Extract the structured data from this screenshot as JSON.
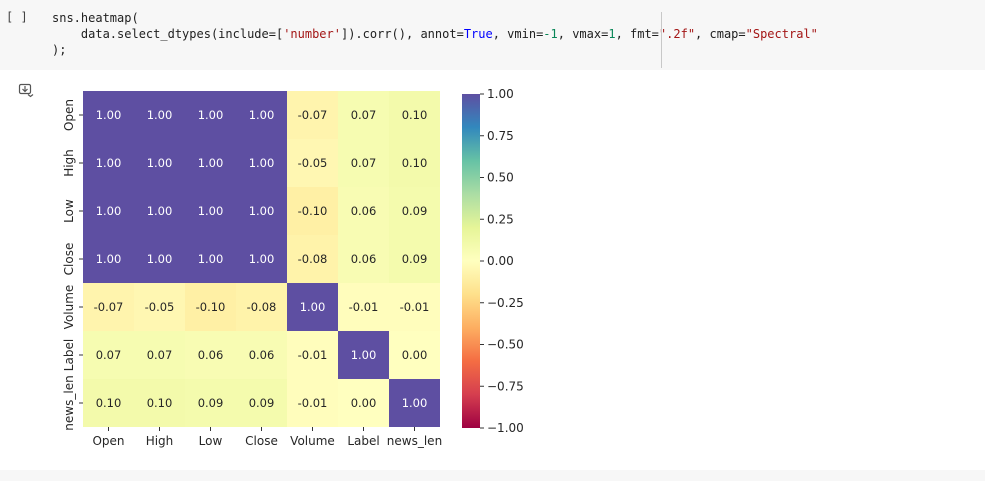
{
  "cell": {
    "bracket": "[ ]",
    "code": {
      "line1": "sns.heatmap(",
      "line2_parts": [
        {
          "t": "    data.select_dtypes(include=[",
          "c": ""
        },
        {
          "t": "'number'",
          "c": "tok-str"
        },
        {
          "t": "]).corr(), annot=",
          "c": ""
        },
        {
          "t": "True",
          "c": "tok-kw"
        },
        {
          "t": ", vmin=",
          "c": ""
        },
        {
          "t": "-1",
          "c": "tok-num"
        },
        {
          "t": ", vmax=",
          "c": ""
        },
        {
          "t": "1",
          "c": "tok-num"
        },
        {
          "t": ", fmt=",
          "c": ""
        },
        {
          "t": "\".2f\"",
          "c": "tok-str"
        },
        {
          "t": ", cmap=",
          "c": ""
        },
        {
          "t": "\"Spectral\"",
          "c": "tok-str"
        }
      ],
      "line2_end": "",
      "line3": ");"
    }
  },
  "output_toggle_icon": "output-toggle-icon",
  "chart_data": {
    "type": "heatmap",
    "title": "",
    "xlabel": "",
    "ylabel": "",
    "colormap": "Spectral",
    "vmin": -1,
    "vmax": 1,
    "fmt": ".2f",
    "rows": [
      "Open",
      "High",
      "Low",
      "Close",
      "Volume",
      "Label",
      "news_len"
    ],
    "columns": [
      "Open",
      "High",
      "Low",
      "Close",
      "Volume",
      "Label",
      "news_len"
    ],
    "values": [
      [
        1.0,
        1.0,
        1.0,
        1.0,
        -0.07,
        0.07,
        0.1
      ],
      [
        1.0,
        1.0,
        1.0,
        1.0,
        -0.05,
        0.07,
        0.1
      ],
      [
        1.0,
        1.0,
        1.0,
        1.0,
        -0.1,
        0.06,
        0.09
      ],
      [
        1.0,
        1.0,
        1.0,
        1.0,
        -0.08,
        0.06,
        0.09
      ],
      [
        -0.07,
        -0.05,
        -0.1,
        -0.08,
        1.0,
        -0.01,
        -0.01
      ],
      [
        0.07,
        0.07,
        0.06,
        0.06,
        -0.01,
        1.0,
        -0.0
      ],
      [
        0.1,
        0.1,
        0.09,
        0.09,
        -0.01,
        -0.0,
        1.0
      ]
    ],
    "colorbar_ticks": [
      "1.00",
      "0.75",
      "0.50",
      "0.25",
      "0.00",
      "−0.25",
      "−0.50",
      "−0.75",
      "−1.00"
    ],
    "colorbar_tick_values": [
      1.0,
      0.75,
      0.5,
      0.25,
      0.0,
      -0.25,
      -0.5,
      -0.75,
      -1.0
    ]
  }
}
